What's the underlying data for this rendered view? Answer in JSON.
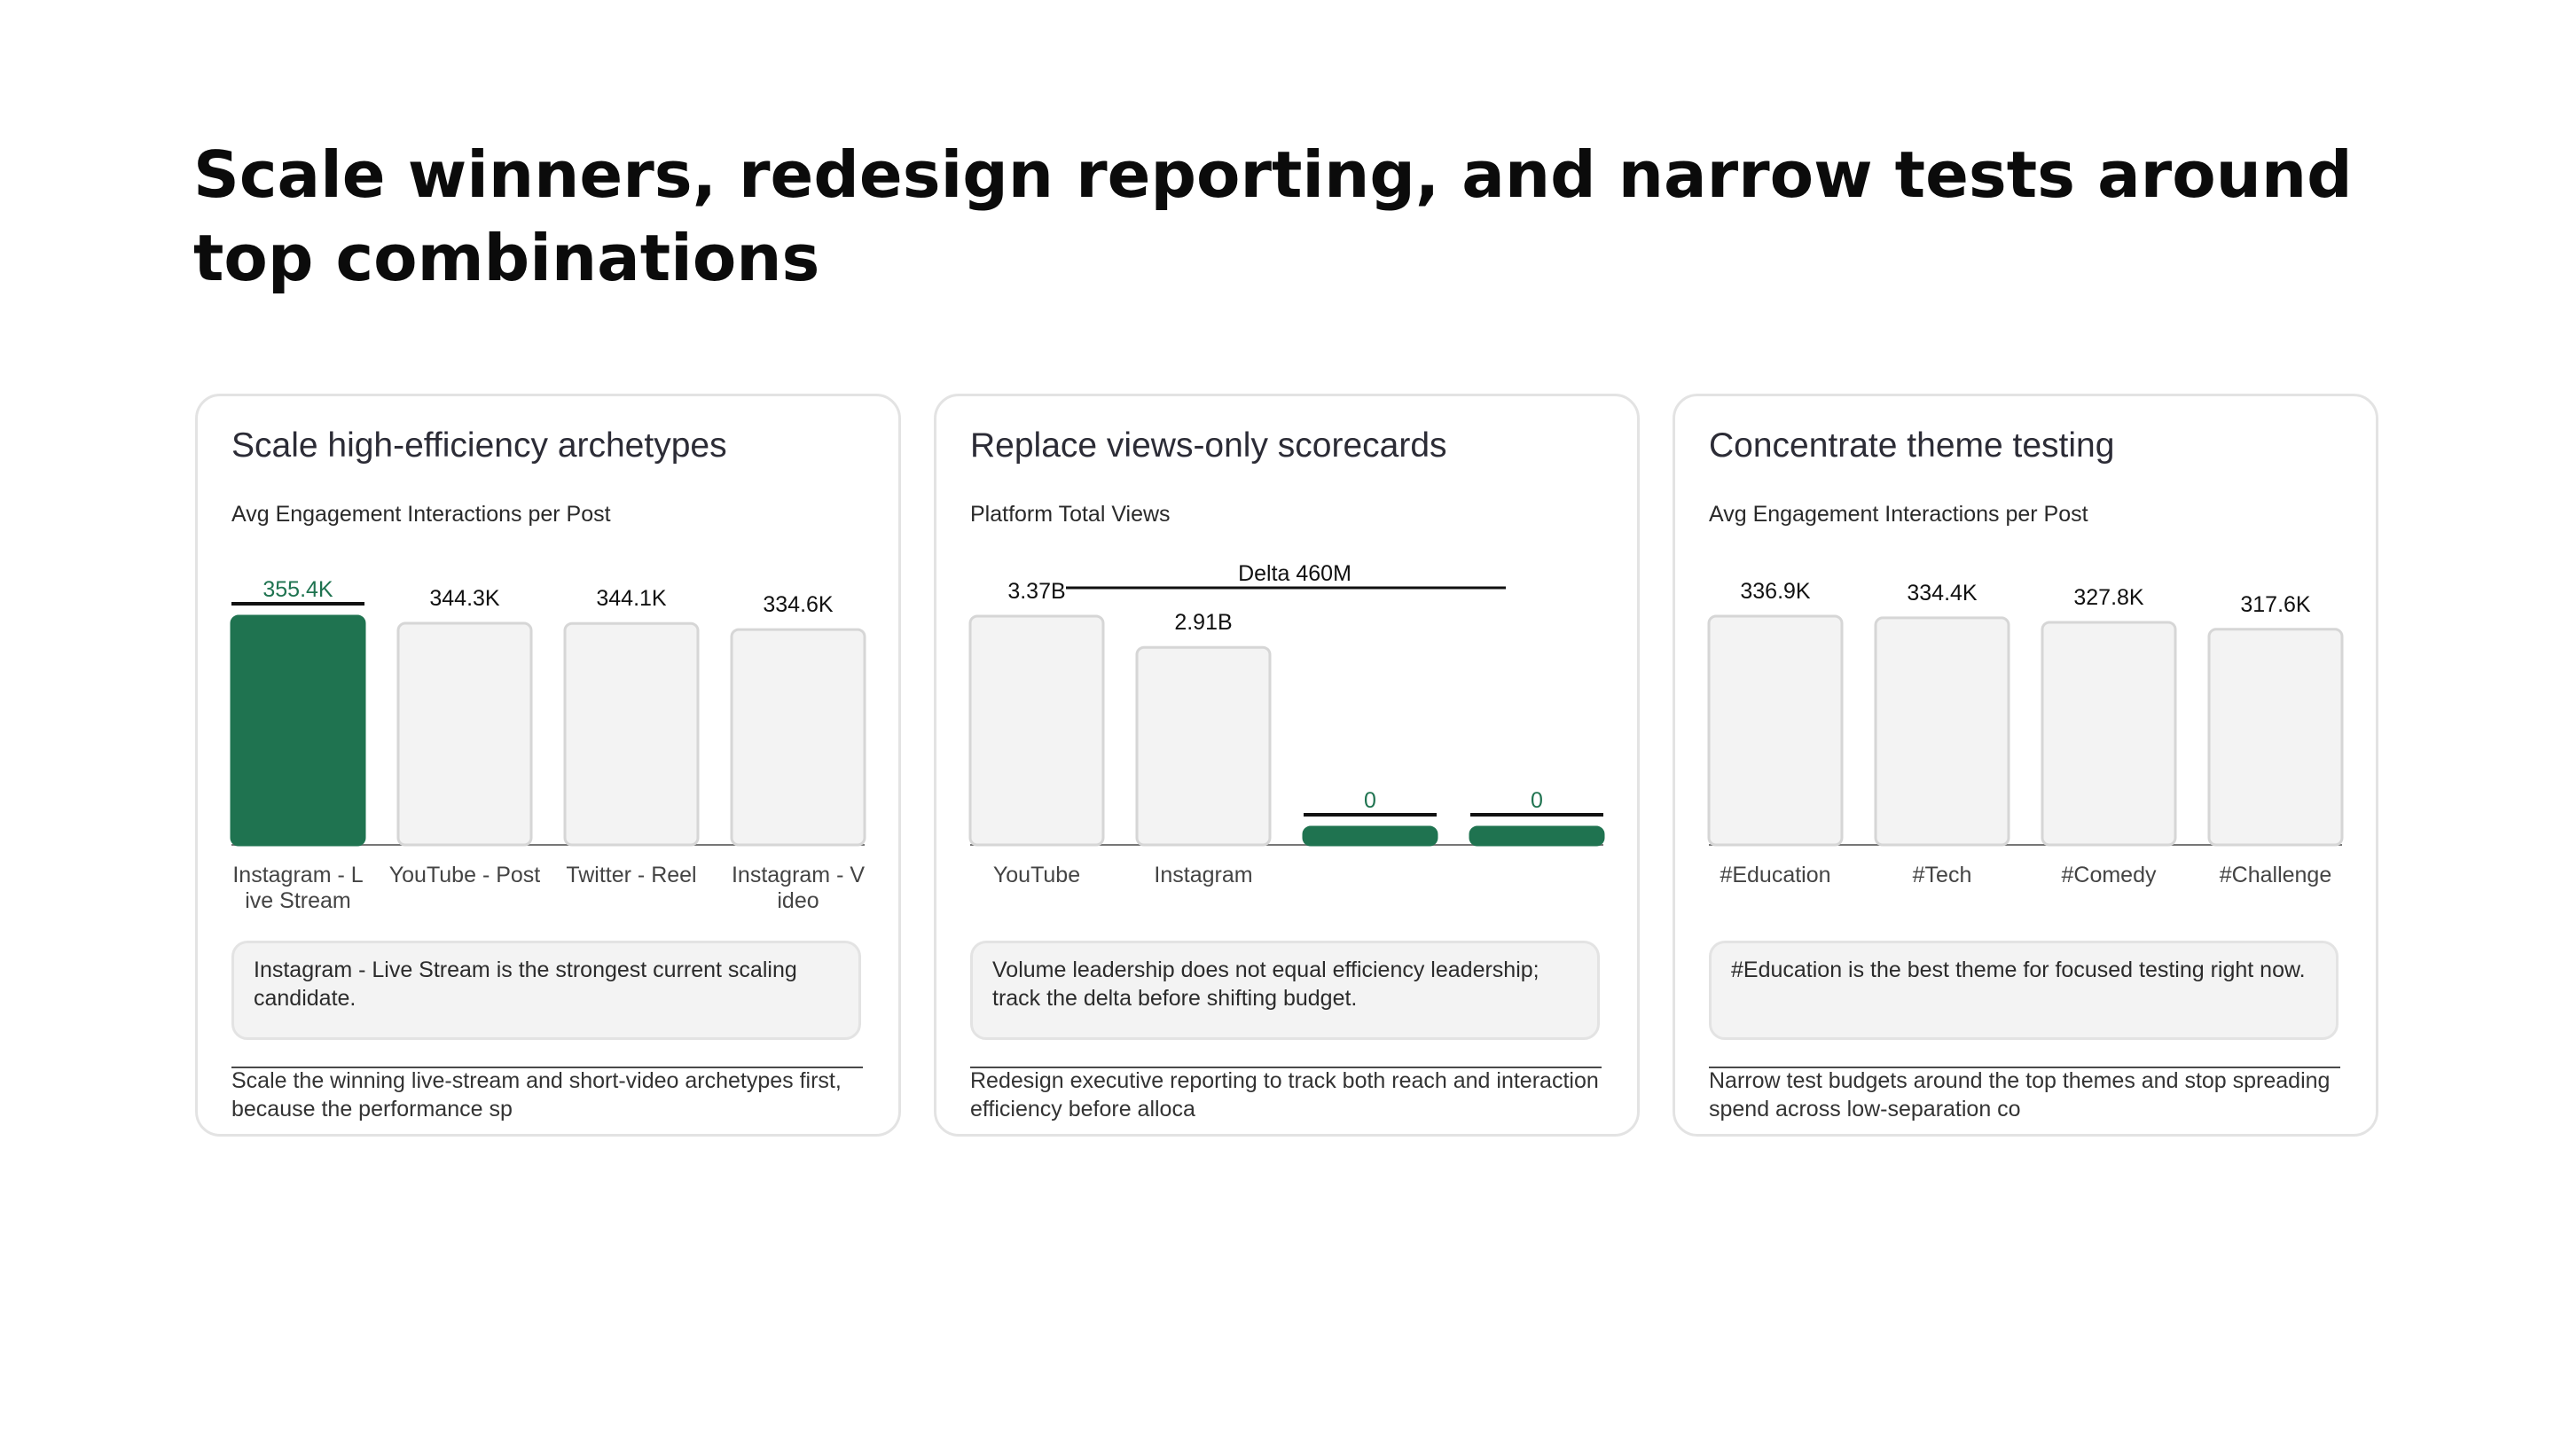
{
  "page": {
    "title": "Scale winners, redesign reporting, and narrow tests around top combinations"
  },
  "colors": {
    "accent": "#1f7350",
    "bar_neutral": "#f3f3f3",
    "bar_border": "#d6d6d6",
    "text_dark": "#111111"
  },
  "cards": [
    {
      "heading": "Scale high-efficiency archetypes",
      "callout": "Instagram - Live Stream is the strongest current scaling candidate.",
      "footer": "Scale the winning live-stream and short-video archetypes first, because the performance sp"
    },
    {
      "heading": "Replace views-only scorecards",
      "callout": "Volume leadership does not equal efficiency leadership; track the delta before shifting budget.",
      "footer": "Redesign executive reporting to track both reach and interaction efficiency before alloca"
    },
    {
      "heading": "Concentrate theme testing",
      "callout": "#Education is the best theme for focused testing right now.",
      "footer": "Narrow test budgets around the top themes and stop spreading spend across low-separation co"
    }
  ],
  "chart_data": [
    {
      "type": "bar",
      "title": "Avg Engagement Interactions per Post",
      "categories": [
        "Instagram - Live Stream",
        "YouTube - Post",
        "Twitter - Reel",
        "Instagram - Video"
      ],
      "values": [
        355.4,
        344.3,
        344.1,
        334.6
      ],
      "unit": "K",
      "data_labels": [
        "355.4K",
        "344.3K",
        "344.1K",
        "334.6K"
      ],
      "highlight_index": 0,
      "ylim": [
        0,
        355.4
      ]
    },
    {
      "type": "bar",
      "title": "Platform Total Views",
      "categories": [
        "YouTube",
        "Instagram",
        "",
        ""
      ],
      "values": [
        3.37,
        2.91,
        0,
        0
      ],
      "unit": "B",
      "data_labels": [
        "3.37B",
        "2.91B",
        "0",
        "0"
      ],
      "highlight_indices": [
        2,
        3
      ],
      "annotation": "Delta 460M",
      "ylim": [
        0,
        3.37
      ]
    },
    {
      "type": "bar",
      "title": "Avg Engagement Interactions per Post",
      "categories": [
        "#Education",
        "#Tech",
        "#Comedy",
        "#Challenge"
      ],
      "values": [
        336.9,
        334.4,
        327.8,
        317.6
      ],
      "unit": "K",
      "data_labels": [
        "336.9K",
        "334.4K",
        "327.8K",
        "317.6K"
      ],
      "ylim": [
        0,
        336.9
      ]
    }
  ]
}
